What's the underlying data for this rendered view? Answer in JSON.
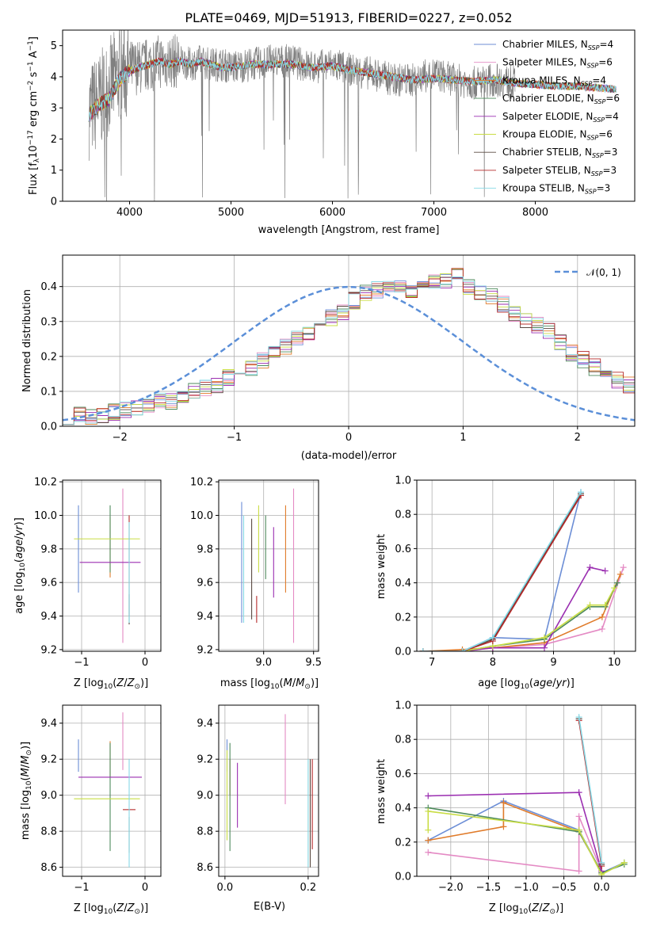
{
  "figure": {
    "title": "PLATE=0469, MJD=51913, FIBERID=0227, z=0.052"
  },
  "colors": [
    "#6c8ed6",
    "#e48ac4",
    "#e07b2a",
    "#4f8b5d",
    "#9b2fb1",
    "#c9dd44",
    "#5a4a42",
    "#b52a2a",
    "#87d9e6"
  ],
  "chart_data": [
    {
      "id": "spectrum",
      "type": "line",
      "title": "PLATE=0469, MJD=51913, FIBERID=0227, z=0.052",
      "xlabel": "wavelength [Angstrom, rest frame]",
      "ylabel_main": "Flux [f",
      "ylabel_sub": "λ",
      "ylabel_mid": "10",
      "ylabel_sup1": "−17",
      "ylabel_mid2": " erg cm",
      "ylabel_sup2": "−2",
      "ylabel_mid3": " s",
      "ylabel_sup3": "−1",
      "ylabel_mid4": " A",
      "ylabel_sup4": "−1",
      "ylabel_end": "]",
      "xlim": [
        3340,
        8980
      ],
      "ylim": [
        0,
        5.5
      ],
      "xticks": [
        4000,
        5000,
        6000,
        7000,
        8000
      ],
      "yticks": [
        0,
        1,
        2,
        3,
        4,
        5
      ],
      "grid": false,
      "legend_position": "upper-right",
      "data_series": {
        "name": "data",
        "color": "#808080",
        "x": [
          3600,
          3700,
          3800,
          3900,
          4000,
          4100,
          4200,
          4300,
          4400,
          4500,
          4600,
          4700,
          4800,
          4900,
          5000,
          5200,
          5400,
          5600,
          5800,
          6000,
          6200,
          6400,
          6600,
          6800,
          7000,
          7200,
          7400,
          7600,
          7800
        ],
        "y": [
          2.9,
          3.2,
          3.7,
          4.1,
          4.3,
          4.3,
          4.4,
          4.5,
          4.5,
          4.5,
          4.4,
          4.5,
          4.4,
          4.4,
          4.3,
          4.4,
          4.5,
          4.5,
          4.3,
          4.4,
          4.2,
          4.1,
          3.9,
          3.9,
          4.1,
          3.9,
          3.8,
          3.9,
          3.8
        ]
      },
      "model_x": [
        3600,
        3700,
        3800,
        3900,
        4000,
        4100,
        4200,
        4300,
        4400,
        4500,
        4600,
        4700,
        4800,
        4900,
        5000,
        5200,
        5400,
        5600,
        5800,
        6000,
        6200,
        6400,
        6600,
        6800,
        7000,
        7200,
        7400,
        7600,
        7800,
        8000,
        8200,
        8400,
        8600,
        8800
      ],
      "model_y": [
        2.8,
        3.1,
        3.3,
        3.9,
        4.2,
        4.3,
        4.4,
        4.5,
        4.4,
        4.5,
        4.4,
        4.5,
        4.4,
        4.3,
        4.3,
        4.4,
        4.4,
        4.4,
        4.3,
        4.35,
        4.2,
        4.1,
        4.0,
        3.9,
        3.95,
        3.9,
        3.85,
        3.9,
        3.8,
        3.75,
        3.7,
        3.7,
        3.65,
        3.6
      ],
      "legend": [
        {
          "name": "Chabrier MILES, N",
          "sub": "SSP",
          "tail": "=4"
        },
        {
          "name": "Salpeter MILES, N",
          "sub": "SSP",
          "tail": "=6"
        },
        {
          "name": "Kroupa MILES, N",
          "sub": "SSP",
          "tail": "=4"
        },
        {
          "name": "Chabrier ELODIE, N",
          "sub": "SSP",
          "tail": "=6"
        },
        {
          "name": "Salpeter ELODIE, N",
          "sub": "SSP",
          "tail": "=4"
        },
        {
          "name": "Kroupa ELODIE, N",
          "sub": "SSP",
          "tail": "=6"
        },
        {
          "name": "Chabrier STELIB, N",
          "sub": "SSP",
          "tail": "=3"
        },
        {
          "name": "Salpeter STELIB, N",
          "sub": "SSP",
          "tail": "=3"
        },
        {
          "name": "Kroupa STELIB, N",
          "sub": "SSP",
          "tail": "=3"
        }
      ]
    },
    {
      "id": "residuals",
      "type": "histogram",
      "xlabel": "(data-model)/error",
      "ylabel": "Normed distribution",
      "xlim": [
        -2.5,
        2.5
      ],
      "ylim": [
        0,
        0.49
      ],
      "xticks": [
        -2,
        -1,
        0,
        1,
        2
      ],
      "yticks": [
        0.0,
        0.1,
        0.2,
        0.3,
        0.4
      ],
      "grid": true,
      "legend_position": "upper-right",
      "legend_label": "𝒩(0, 1)",
      "bin_width": 0.1,
      "bin_start": -2.5,
      "values": [
        0.03,
        0.03,
        0.03,
        0.03,
        0.04,
        0.05,
        0.05,
        0.06,
        0.07,
        0.07,
        0.08,
        0.1,
        0.11,
        0.12,
        0.14,
        0.15,
        0.17,
        0.19,
        0.21,
        0.23,
        0.25,
        0.27,
        0.29,
        0.31,
        0.33,
        0.36,
        0.38,
        0.39,
        0.41,
        0.4,
        0.38,
        0.39,
        0.41,
        0.42,
        0.43,
        0.4,
        0.38,
        0.37,
        0.35,
        0.32,
        0.3,
        0.29,
        0.27,
        0.24,
        0.21,
        0.19,
        0.17,
        0.15,
        0.13,
        0.12,
        0.1,
        0.09,
        0.08,
        0.07,
        0.06,
        0.05,
        0.05,
        0.04,
        0.03,
        0.03,
        0.02,
        0.02,
        0.02,
        0.02,
        0.02,
        0.01,
        0.01,
        0.01,
        0.01,
        0.01
      ]
    },
    {
      "id": "age_vs_Z",
      "type": "errorbar",
      "xlabel": "Z [log",
      "ylabel": "age  [log",
      "xlim": [
        -1.3,
        0.25
      ],
      "ylim": [
        9.19,
        10.21
      ],
      "xticks": [
        -1,
        0
      ],
      "xticklabels": [
        "−1",
        "0"
      ],
      "yticks": [
        9.2,
        9.4,
        9.6,
        9.8,
        10.0,
        10.2
      ],
      "points": [
        {
          "x": -1.05,
          "y": 9.8,
          "xerr": 0.0,
          "yerr": 0.26
        },
        {
          "x": -0.35,
          "y": 9.7,
          "xerr": 0.0,
          "yerr": 0.46
        },
        {
          "x": -0.55,
          "y": 9.81,
          "xerr": 0.0,
          "yerr": 0.18
        },
        {
          "x": -0.55,
          "y": 9.86,
          "xerr": 0.0,
          "yerr": 0.2
        },
        {
          "x": -0.55,
          "y": 9.72,
          "xerr": 0.48,
          "yerr": 0.0
        },
        {
          "x": -0.6,
          "y": 9.86,
          "xerr": 0.52,
          "yerr": 0.0
        },
        {
          "x": -0.25,
          "y": 9.44,
          "xerr": 0.0,
          "yerr": 0.09
        },
        {
          "x": -0.25,
          "y": 9.7,
          "xerr": 0.0,
          "yerr": 0.3
        },
        {
          "x": -0.25,
          "y": 9.66,
          "xerr": 0.0,
          "yerr": 0.3
        }
      ]
    },
    {
      "id": "age_vs_mass",
      "type": "errorbar",
      "xlabel": "mass [log",
      "ylabel": "",
      "xlim": [
        8.55,
        9.55
      ],
      "ylim": [
        9.19,
        10.21
      ],
      "xticks": [
        9.0,
        9.5
      ],
      "yticks": [
        9.2,
        9.4,
        9.6,
        9.8,
        10.0,
        10.2
      ],
      "points": [
        {
          "x": 8.78,
          "y": 9.72,
          "xerr": 0.0,
          "yerr": 0.36
        },
        {
          "x": 9.3,
          "y": 9.7,
          "xerr": 0.0,
          "yerr": 0.46
        },
        {
          "x": 9.22,
          "y": 9.8,
          "xerr": 0.0,
          "yerr": 0.26
        },
        {
          "x": 9.02,
          "y": 9.81,
          "xerr": 0.0,
          "yerr": 0.19
        },
        {
          "x": 9.1,
          "y": 9.72,
          "xerr": 0.0,
          "yerr": 0.21
        },
        {
          "x": 8.95,
          "y": 9.86,
          "xerr": 0.0,
          "yerr": 0.2
        },
        {
          "x": 8.88,
          "y": 9.68,
          "xerr": 0.0,
          "yerr": 0.3
        },
        {
          "x": 8.93,
          "y": 9.44,
          "xerr": 0.0,
          "yerr": 0.08
        },
        {
          "x": 8.8,
          "y": 9.68,
          "xerr": 0.0,
          "yerr": 0.32
        }
      ]
    },
    {
      "id": "massweight_vs_age",
      "type": "line",
      "xlabel": "age  [log",
      "ylabel": "mass weight",
      "xlim": [
        6.75,
        10.35
      ],
      "ylim": [
        0,
        1.0
      ],
      "xticks": [
        7,
        8,
        9,
        10
      ],
      "yticks": [
        0.0,
        0.2,
        0.4,
        0.6,
        0.8,
        1.0
      ],
      "series": [
        {
          "x": [
            6.85,
            7.5,
            8.0,
            8.85,
            9.45
          ],
          "y": [
            0.0,
            0.0,
            0.08,
            0.07,
            0.93
          ]
        },
        {
          "x": [
            6.85,
            7.5,
            8.0,
            8.85,
            9.8,
            10.15
          ],
          "y": [
            0.0,
            0.0,
            0.02,
            0.04,
            0.13,
            0.49
          ]
        },
        {
          "x": [
            6.85,
            7.5,
            8.0,
            8.85,
            9.8,
            10.1
          ],
          "y": [
            0.0,
            0.01,
            0.02,
            0.05,
            0.2,
            0.45
          ]
        },
        {
          "x": [
            6.85,
            7.5,
            8.0,
            8.85,
            9.6,
            9.85,
            10.05
          ],
          "y": [
            0.0,
            0.0,
            0.03,
            0.07,
            0.26,
            0.26,
            0.4
          ]
        },
        {
          "x": [
            6.85,
            7.5,
            8.0,
            8.85,
            9.6,
            9.85
          ],
          "y": [
            0.0,
            0.0,
            0.02,
            0.02,
            0.49,
            0.47
          ]
        },
        {
          "x": [
            6.85,
            7.5,
            8.0,
            8.85,
            9.6,
            9.85,
            10.0
          ],
          "y": [
            0.0,
            0.0,
            0.03,
            0.08,
            0.27,
            0.27,
            0.37
          ]
        },
        {
          "x": [
            6.85,
            7.5,
            8.0,
            9.45
          ],
          "y": [
            0.0,
            0.0,
            0.07,
            0.92
          ]
        },
        {
          "x": [
            6.85,
            7.5,
            8.0,
            9.45
          ],
          "y": [
            0.0,
            0.0,
            0.06,
            0.91
          ]
        },
        {
          "x": [
            6.85,
            7.5,
            8.0,
            9.45
          ],
          "y": [
            0.0,
            0.0,
            0.08,
            0.93
          ]
        }
      ]
    },
    {
      "id": "mass_vs_Z",
      "type": "errorbar",
      "xlabel": "Z [log",
      "ylabel": "mass [log",
      "xlim": [
        -1.3,
        0.25
      ],
      "ylim": [
        8.55,
        9.5
      ],
      "xticks": [
        -1,
        0
      ],
      "xticklabels": [
        "−1",
        "0"
      ],
      "yticks": [
        8.6,
        8.8,
        9.0,
        9.2,
        9.4
      ],
      "points": [
        {
          "x": -1.05,
          "y": 9.22,
          "xerr": 0.0,
          "yerr": 0.09
        },
        {
          "x": -0.35,
          "y": 9.3,
          "xerr": 0.0,
          "yerr": 0.16
        },
        {
          "x": -0.55,
          "y": 9.2,
          "xerr": 0.0,
          "yerr": 0.1
        },
        {
          "x": -0.55,
          "y": 8.99,
          "xerr": 0.0,
          "yerr": 0.3
        },
        {
          "x": -0.55,
          "y": 9.1,
          "xerr": 0.5,
          "yerr": 0.0
        },
        {
          "x": -0.6,
          "y": 8.98,
          "xerr": 0.52,
          "yerr": 0.0
        },
        {
          "x": -0.25,
          "y": 8.78,
          "xerr": 0.0,
          "yerr": 0.1
        },
        {
          "x": -0.25,
          "y": 8.92,
          "xerr": 0.1,
          "yerr": 0.0
        },
        {
          "x": -0.25,
          "y": 8.9,
          "xerr": 0.0,
          "yerr": 0.3
        }
      ]
    },
    {
      "id": "mass_vs_EBV",
      "type": "errorbar",
      "xlabel": "E(B-V)",
      "ylabel": "",
      "xlim": [
        -0.015,
        0.225
      ],
      "ylim": [
        8.55,
        9.5
      ],
      "xticks": [
        0.0,
        0.2
      ],
      "yticks": [
        8.6,
        8.8,
        9.0,
        9.2,
        9.4
      ],
      "points": [
        {
          "x": 0.005,
          "y": 9.22,
          "xerr": 0.0,
          "yerr": 0.09
        },
        {
          "x": 0.145,
          "y": 9.2,
          "xerr": 0.0,
          "yerr": 0.25
        },
        {
          "x": 0.012,
          "y": 9.1,
          "xerr": 0.0,
          "yerr": 0.1
        },
        {
          "x": 0.012,
          "y": 8.99,
          "xerr": 0.0,
          "yerr": 0.3
        },
        {
          "x": 0.03,
          "y": 9.0,
          "xerr": 0.0,
          "yerr": 0.18
        },
        {
          "x": 0.005,
          "y": 9.0,
          "xerr": 0.0,
          "yerr": 0.25
        },
        {
          "x": 0.205,
          "y": 8.9,
          "xerr": 0.0,
          "yerr": 0.3
        },
        {
          "x": 0.21,
          "y": 8.95,
          "xerr": 0.0,
          "yerr": 0.25
        },
        {
          "x": 0.2,
          "y": 8.9,
          "xerr": 0.0,
          "yerr": 0.3
        }
      ]
    },
    {
      "id": "massweight_vs_Z",
      "type": "line",
      "xlabel": "Z [log",
      "ylabel": "mass weight",
      "xlim": [
        -2.45,
        0.45
      ],
      "ylim": [
        0,
        1.0
      ],
      "xticks": [
        -2.0,
        -1.5,
        -1.0,
        -0.5,
        0.0
      ],
      "xticklabels": [
        "−2.0",
        "−1.5",
        "−1.0",
        "−0.5",
        "0.0"
      ],
      "yticks": [
        0.0,
        0.2,
        0.4,
        0.6,
        0.8,
        1.0
      ],
      "series": [
        {
          "x": [
            -2.3,
            -1.3,
            -0.3,
            0.0,
            0.3
          ],
          "y": [
            0.21,
            0.44,
            0.27,
            0.02,
            0.08
          ]
        },
        {
          "x": [
            -2.3,
            -0.3,
            -0.3,
            0.0
          ],
          "y": [
            0.14,
            0.03,
            0.35,
            0.03
          ]
        },
        {
          "x": [
            -2.3,
            -1.3,
            -1.3,
            -0.3,
            0.0
          ],
          "y": [
            0.21,
            0.29,
            0.43,
            0.26,
            0.02
          ]
        },
        {
          "x": [
            -2.3,
            -0.3,
            0.0,
            0.3
          ],
          "y": [
            0.4,
            0.26,
            0.02,
            0.07
          ]
        },
        {
          "x": [
            -2.3,
            -0.3,
            0.0
          ],
          "y": [
            0.47,
            0.49,
            0.03
          ]
        },
        {
          "x": [
            -2.3,
            -2.3,
            -0.3,
            0.0,
            0.3
          ],
          "y": [
            0.27,
            0.38,
            0.27,
            0.01,
            0.08
          ]
        },
        {
          "x": [
            -0.3,
            0.0
          ],
          "y": [
            0.92,
            0.07
          ]
        },
        {
          "x": [
            -0.3,
            0.0
          ],
          "y": [
            0.91,
            0.06
          ]
        },
        {
          "x": [
            -0.3,
            0.0
          ],
          "y": [
            0.93,
            0.08
          ]
        }
      ]
    }
  ]
}
